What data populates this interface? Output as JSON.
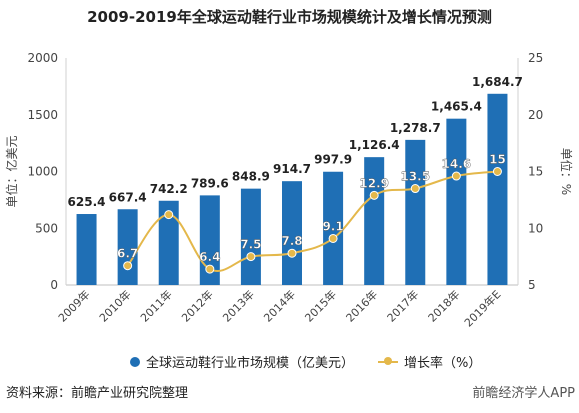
{
  "title": "2009-2019年全球运动鞋行业市场规模统计及增长情况预测",
  "footer": {
    "source": "资料来源：前瞻产业研究院整理",
    "watermark_right": "前瞻经济学人APP"
  },
  "chart_data": {
    "type": "bar",
    "categories": [
      "2009年",
      "2010年",
      "2011年",
      "2012年",
      "2013年",
      "2014年",
      "2015年",
      "2016年",
      "2017年",
      "2018年",
      "2019年E"
    ],
    "series": [
      {
        "name": "全球运动鞋行业市场规模（亿美元）",
        "type": "bar",
        "axis": "left",
        "color": "#1f6fb5",
        "values": [
          625.4,
          667.4,
          742.2,
          789.6,
          848.9,
          914.7,
          997.9,
          1126.4,
          1278.7,
          1465.4,
          1684.7
        ],
        "labels": [
          "625.4",
          "667.4",
          "742.2",
          "789.6",
          "848.9",
          "914.7",
          "997.9",
          "1,126.4",
          "1,278.7",
          "1,465.4",
          "1,684.7"
        ]
      },
      {
        "name": "增长率（%）",
        "type": "line",
        "axis": "right",
        "color": "#e4b84b",
        "values": [
          null,
          6.7,
          11.2,
          6.4,
          7.5,
          7.8,
          9.1,
          12.9,
          13.5,
          14.6,
          15
        ],
        "labels": [
          "",
          "6.7",
          "",
          "6.4",
          "7.5",
          "7.8",
          "9.1",
          "12.9",
          "13.5",
          "14.6",
          "15"
        ]
      }
    ],
    "ylabel_left": "单位：亿美元",
    "ylabel_right": "单位：%",
    "ylim_left": [
      0,
      2000
    ],
    "yticks_left": [
      0,
      500,
      1000,
      1500,
      2000
    ],
    "ylim_right": [
      5,
      25
    ],
    "yticks_right": [
      5,
      10,
      15,
      20,
      25
    ],
    "grid": false,
    "legend": "bottom"
  }
}
